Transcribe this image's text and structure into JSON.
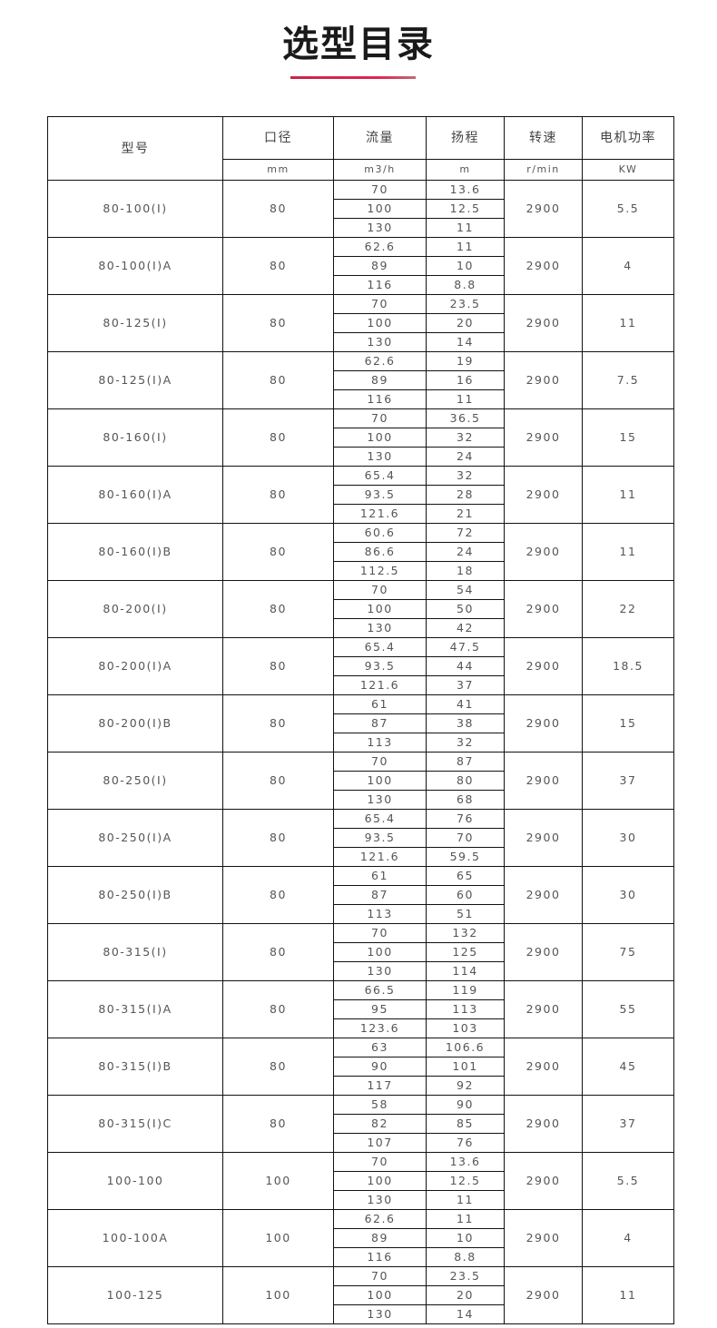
{
  "title": "选型目录",
  "header": {
    "model": "型号",
    "cols": [
      "口径",
      "流量",
      "扬程",
      "转速",
      "电机功率"
    ],
    "units": [
      "mm",
      "m3/h",
      "m",
      "r/min",
      "KW"
    ]
  },
  "rows": [
    {
      "model": "80-100(I)",
      "dia": "80",
      "flow": [
        "70",
        "100",
        "130"
      ],
      "head": [
        "13.6",
        "12.5",
        "11"
      ],
      "speed": "2900",
      "power": "5.5"
    },
    {
      "model": "80-100(I)A",
      "dia": "80",
      "flow": [
        "62.6",
        "89",
        "116"
      ],
      "head": [
        "11",
        "10",
        "8.8"
      ],
      "speed": "2900",
      "power": "4"
    },
    {
      "model": "80-125(I)",
      "dia": "80",
      "flow": [
        "70",
        "100",
        "130"
      ],
      "head": [
        "23.5",
        "20",
        "14"
      ],
      "speed": "2900",
      "power": "11"
    },
    {
      "model": "80-125(I)A",
      "dia": "80",
      "flow": [
        "62.6",
        "89",
        "116"
      ],
      "head": [
        "19",
        "16",
        "11"
      ],
      "speed": "2900",
      "power": "7.5"
    },
    {
      "model": "80-160(I)",
      "dia": "80",
      "flow": [
        "70",
        "100",
        "130"
      ],
      "head": [
        "36.5",
        "32",
        "24"
      ],
      "speed": "2900",
      "power": "15"
    },
    {
      "model": "80-160(I)A",
      "dia": "80",
      "flow": [
        "65.4",
        "93.5",
        "121.6"
      ],
      "head": [
        "32",
        "28",
        "21"
      ],
      "speed": "2900",
      "power": "11"
    },
    {
      "model": "80-160(I)B",
      "dia": "80",
      "flow": [
        "60.6",
        "86.6",
        "112.5"
      ],
      "head": [
        "72",
        "24",
        "18"
      ],
      "speed": "2900",
      "power": "11"
    },
    {
      "model": "80-200(I)",
      "dia": "80",
      "flow": [
        "70",
        "100",
        "130"
      ],
      "head": [
        "54",
        "50",
        "42"
      ],
      "speed": "2900",
      "power": "22"
    },
    {
      "model": "80-200(I)A",
      "dia": "80",
      "flow": [
        "65.4",
        "93.5",
        "121.6"
      ],
      "head": [
        "47.5",
        "44",
        "37"
      ],
      "speed": "2900",
      "power": "18.5"
    },
    {
      "model": "80-200(I)B",
      "dia": "80",
      "flow": [
        "61",
        "87",
        "113"
      ],
      "head": [
        "41",
        "38",
        "32"
      ],
      "speed": "2900",
      "power": "15"
    },
    {
      "model": "80-250(I)",
      "dia": "80",
      "flow": [
        "70",
        "100",
        "130"
      ],
      "head": [
        "87",
        "80",
        "68"
      ],
      "speed": "2900",
      "power": "37"
    },
    {
      "model": "80-250(I)A",
      "dia": "80",
      "flow": [
        "65.4",
        "93.5",
        "121.6"
      ],
      "head": [
        "76",
        "70",
        "59.5"
      ],
      "speed": "2900",
      "power": "30"
    },
    {
      "model": "80-250(I)B",
      "dia": "80",
      "flow": [
        "61",
        "87",
        "113"
      ],
      "head": [
        "65",
        "60",
        "51"
      ],
      "speed": "2900",
      "power": "30"
    },
    {
      "model": "80-315(I)",
      "dia": "80",
      "flow": [
        "70",
        "100",
        "130"
      ],
      "head": [
        "132",
        "125",
        "114"
      ],
      "speed": "2900",
      "power": "75"
    },
    {
      "model": "80-315(I)A",
      "dia": "80",
      "flow": [
        "66.5",
        "95",
        "123.6"
      ],
      "head": [
        "119",
        "113",
        "103"
      ],
      "speed": "2900",
      "power": "55"
    },
    {
      "model": "80-315(I)B",
      "dia": "80",
      "flow": [
        "63",
        "90",
        "117"
      ],
      "head": [
        "106.6",
        "101",
        "92"
      ],
      "speed": "2900",
      "power": "45"
    },
    {
      "model": "80-315(I)C",
      "dia": "80",
      "flow": [
        "58",
        "82",
        "107"
      ],
      "head": [
        "90",
        "85",
        "76"
      ],
      "speed": "2900",
      "power": "37"
    },
    {
      "model": "100-100",
      "dia": "100",
      "flow": [
        "70",
        "100",
        "130"
      ],
      "head": [
        "13.6",
        "12.5",
        "11"
      ],
      "speed": "2900",
      "power": "5.5"
    },
    {
      "model": "100-100A",
      "dia": "100",
      "flow": [
        "62.6",
        "89",
        "116"
      ],
      "head": [
        "11",
        "10",
        "8.8"
      ],
      "speed": "2900",
      "power": "4"
    },
    {
      "model": "100-125",
      "dia": "100",
      "flow": [
        "70",
        "100",
        "130"
      ],
      "head": [
        "23.5",
        "20",
        "14"
      ],
      "speed": "2900",
      "power": "11"
    }
  ]
}
